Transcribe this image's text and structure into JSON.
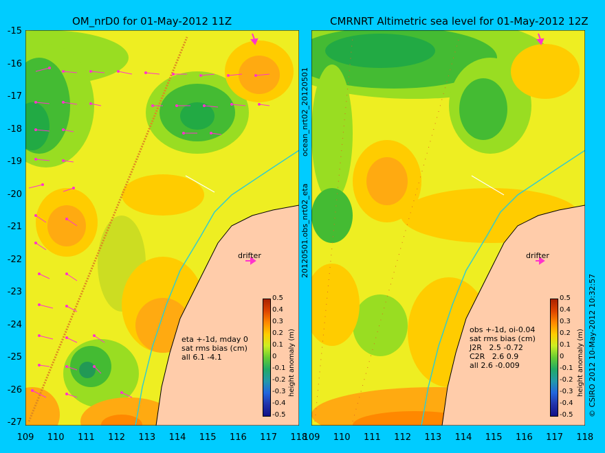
{
  "left_panel": {
    "title": "OM_nrD0 for 01-May-2012 11Z",
    "side_label": "ocean_nrt02_20120501",
    "notes": "eta +-1d, mday 0\nsat rms bias (cm)\nall 6.1 -4.1",
    "drifter_label": "drifter"
  },
  "right_panel": {
    "title": "CMRNRT Altimetric sea level  for 01-May-2012 12Z",
    "side_label": "20120501.obs_nrt02_eta",
    "notes": "obs +-1d, oi-0.04\nsat rms bias (cm)\nJ2R   2.5 -0.72\nC2R   2.6 0.9\nall 2.6 -0.009",
    "drifter_label": "drifter",
    "credit": "© CSIRO 2012  10-May-2012 10:32:57"
  },
  "axes": {
    "y_ticks": [
      "-15",
      "-16",
      "-17",
      "-18",
      "-19",
      "-20",
      "-21",
      "-22",
      "-23",
      "-24",
      "-25",
      "-26",
      "-27"
    ],
    "x_ticks": [
      "109",
      "110",
      "111",
      "112",
      "113",
      "114",
      "115",
      "116",
      "117",
      "118"
    ]
  },
  "colorbar": {
    "title": "height anomaly (m)",
    "ticks": [
      "0.5",
      "0.4",
      "0.3",
      "0.2",
      "0.1",
      "0",
      "-0.1",
      "-0.2",
      "-0.3",
      "-0.4",
      "-0.5"
    ]
  },
  "colors": {
    "background": "#00ccff",
    "land": "#ffccaa",
    "vector": "#ff33cc",
    "coastline_cyan": "#33cccc"
  }
}
